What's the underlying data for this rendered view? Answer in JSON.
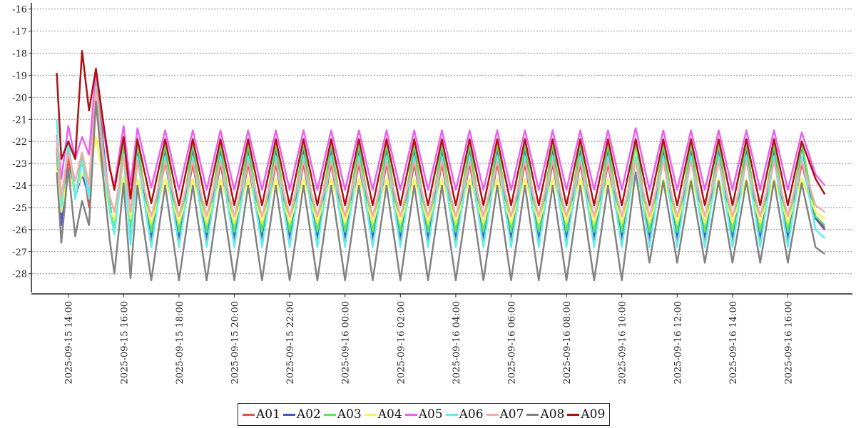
{
  "chart_data": {
    "type": "line",
    "title": "",
    "xlabel": "",
    "ylabel": "",
    "ylim": [
      -28.85,
      -15.85
    ],
    "y_ticks": [
      "-16",
      "-17",
      "-18",
      "-19",
      "-20",
      "-21",
      "-22",
      "-23",
      "-24",
      "-25",
      "-26",
      "-27",
      "-28"
    ],
    "x_ticks": [
      "2025-09-15 14:00",
      "2025-09-15 16:00",
      "2025-09-15 18:00",
      "2025-09-15 20:00",
      "2025-09-15 22:00",
      "2025-09-16 00:00",
      "2025-09-16 02:00",
      "2025-09-16 04:00",
      "2025-09-16 06:00",
      "2025-09-16 08:00",
      "2025-09-16 10:00",
      "2025-09-16 12:00",
      "2025-09-16 14:00",
      "2025-09-16 16:00"
    ],
    "x_range": [
      "2025-09-15 12:40",
      "2025-09-16 18:20"
    ],
    "grid": "horizontal dotted",
    "legend_position": "bottom-center",
    "x": [
      "2025-09-15 13:35",
      "2025-09-15 13:45",
      "2025-09-15 14:00",
      "2025-09-15 14:15",
      "2025-09-15 14:30",
      "2025-09-15 14:45",
      "2025-09-15 15:00",
      "2025-09-15 15:15",
      "2025-09-15 15:30",
      "2025-09-15 15:40",
      "2025-09-15 16:00",
      "2025-09-15 16:15",
      "2025-09-15 16:30",
      "2025-09-15 17:00",
      "2025-09-15 17:30",
      "2025-09-15 18:00",
      "2025-09-15 18:30",
      "2025-09-15 19:00",
      "2025-09-15 19:30",
      "2025-09-15 20:00",
      "2025-09-15 20:30",
      "2025-09-15 21:00",
      "2025-09-15 21:30",
      "2025-09-15 22:00",
      "2025-09-15 22:30",
      "2025-09-15 23:00",
      "2025-09-15 23:30",
      "2025-09-16 00:00",
      "2025-09-16 00:30",
      "2025-09-16 01:00",
      "2025-09-16 01:30",
      "2025-09-16 02:00",
      "2025-09-16 02:30",
      "2025-09-16 03:00",
      "2025-09-16 03:30",
      "2025-09-16 04:00",
      "2025-09-16 04:30",
      "2025-09-16 05:00",
      "2025-09-16 05:30",
      "2025-09-16 06:00",
      "2025-09-16 06:30",
      "2025-09-16 07:00",
      "2025-09-16 07:30",
      "2025-09-16 08:00",
      "2025-09-16 08:30",
      "2025-09-16 09:00",
      "2025-09-16 09:30",
      "2025-09-16 10:00",
      "2025-09-16 10:30",
      "2025-09-16 11:00",
      "2025-09-16 11:30",
      "2025-09-16 12:00",
      "2025-09-16 12:30",
      "2025-09-16 13:00",
      "2025-09-16 13:30",
      "2025-09-16 14:00",
      "2025-09-16 14:30",
      "2025-09-16 15:00",
      "2025-09-16 15:30",
      "2025-09-16 16:00",
      "2025-09-16 16:30",
      "2025-09-16 17:00",
      "2025-09-16 17:20"
    ],
    "series": [
      {
        "name": "A01",
        "color": "#e8504a",
        "values": [
          -22.3,
          -25.5,
          -22.8,
          -24.5,
          -22.8,
          -25.0,
          -19.4,
          -22.8,
          -25.0,
          -26.1,
          -22.6,
          -26.3,
          -22.8,
          -26.5,
          -22.9,
          -26.6,
          -23.0,
          -26.6,
          -23.0,
          -26.6,
          -23.0,
          -26.6,
          -23.0,
          -26.6,
          -23.0,
          -26.6,
          -23.0,
          -26.6,
          -23.0,
          -26.6,
          -23.0,
          -26.6,
          -23.0,
          -26.6,
          -23.0,
          -26.6,
          -23.0,
          -26.6,
          -23.0,
          -26.6,
          -23.0,
          -26.6,
          -23.0,
          -26.6,
          -23.0,
          -26.6,
          -23.0,
          -26.6,
          -22.8,
          -26.5,
          -22.8,
          -26.5,
          -22.8,
          -26.5,
          -22.8,
          -26.5,
          -22.8,
          -26.5,
          -22.8,
          -26.5,
          -23.0,
          -25.5,
          -25.9
        ]
      },
      {
        "name": "A02",
        "color": "#4a55d8",
        "values": [
          -22.5,
          -25.8,
          -22.0,
          -24.5,
          -23.5,
          -24.5,
          -18.9,
          -22.0,
          -24.8,
          -26.2,
          -22.2,
          -26.2,
          -22.3,
          -26.3,
          -22.3,
          -26.3,
          -22.3,
          -26.3,
          -22.3,
          -26.3,
          -22.3,
          -26.3,
          -22.3,
          -26.3,
          -22.3,
          -26.3,
          -22.3,
          -26.3,
          -22.3,
          -26.3,
          -22.3,
          -26.3,
          -22.3,
          -26.3,
          -22.3,
          -26.3,
          -22.3,
          -26.3,
          -22.3,
          -26.3,
          -22.3,
          -26.3,
          -22.3,
          -26.3,
          -22.3,
          -26.3,
          -22.3,
          -26.3,
          -21.9,
          -26.3,
          -22.3,
          -26.3,
          -22.3,
          -26.3,
          -22.3,
          -26.3,
          -22.3,
          -26.3,
          -22.3,
          -26.3,
          -22.2,
          -25.5,
          -26.0
        ]
      },
      {
        "name": "A03",
        "color": "#5ae85a",
        "values": [
          -22.4,
          -25.2,
          -22.1,
          -24.6,
          -22.6,
          -24.6,
          -19.2,
          -22.3,
          -24.9,
          -26.0,
          -22.0,
          -26.0,
          -22.1,
          -26.1,
          -22.1,
          -26.1,
          -22.1,
          -26.1,
          -22.1,
          -26.1,
          -22.1,
          -26.1,
          -22.1,
          -26.1,
          -22.1,
          -26.1,
          -22.1,
          -26.1,
          -22.1,
          -26.1,
          -22.1,
          -26.1,
          -22.1,
          -26.1,
          -22.1,
          -26.1,
          -22.1,
          -26.1,
          -22.1,
          -26.1,
          -22.1,
          -26.1,
          -22.1,
          -26.1,
          -22.1,
          -26.1,
          -22.1,
          -26.1,
          -22.1,
          -26.1,
          -22.1,
          -26.1,
          -22.1,
          -26.1,
          -22.1,
          -26.1,
          -22.1,
          -26.1,
          -22.1,
          -26.1,
          -22.1,
          -25.4,
          -25.8
        ]
      },
      {
        "name": "A04",
        "color": "#f4f452",
        "values": [
          -23.3,
          -25.2,
          -23.4,
          -24.3,
          -23.5,
          -23.8,
          -21.8,
          -23.5,
          -25.2,
          -25.5,
          -23.6,
          -25.5,
          -23.7,
          -25.7,
          -23.7,
          -25.7,
          -23.7,
          -25.7,
          -23.7,
          -25.7,
          -23.7,
          -25.7,
          -23.7,
          -25.7,
          -23.7,
          -25.7,
          -23.7,
          -25.7,
          -23.7,
          -25.7,
          -23.7,
          -25.7,
          -23.7,
          -25.7,
          -23.7,
          -25.7,
          -23.7,
          -25.7,
          -23.7,
          -25.7,
          -23.7,
          -25.7,
          -23.7,
          -25.7,
          -23.7,
          -25.7,
          -23.7,
          -25.7,
          -23.6,
          -25.7,
          -23.7,
          -25.7,
          -23.7,
          -25.7,
          -23.7,
          -25.7,
          -23.7,
          -25.7,
          -23.7,
          -25.7,
          -23.7,
          -25.2,
          -25.5
        ]
      },
      {
        "name": "A05",
        "color": "#ee5ef0",
        "values": [
          -21.7,
          -23.7,
          -21.3,
          -22.8,
          -21.8,
          -22.6,
          -18.8,
          -21.3,
          -23.3,
          -24.0,
          -21.3,
          -24.0,
          -21.4,
          -24.1,
          -21.5,
          -24.2,
          -21.5,
          -24.2,
          -21.5,
          -24.2,
          -21.5,
          -24.2,
          -21.5,
          -24.2,
          -21.5,
          -24.2,
          -21.5,
          -24.2,
          -21.5,
          -24.2,
          -21.5,
          -24.2,
          -21.5,
          -24.2,
          -21.5,
          -24.2,
          -21.5,
          -24.2,
          -21.5,
          -24.2,
          -21.5,
          -24.2,
          -21.5,
          -24.2,
          -21.5,
          -24.2,
          -21.5,
          -24.2,
          -21.4,
          -24.2,
          -21.5,
          -24.2,
          -21.5,
          -24.2,
          -21.5,
          -24.2,
          -21.5,
          -24.2,
          -21.5,
          -24.2,
          -21.6,
          -23.5,
          -24.0
        ]
      },
      {
        "name": "A06",
        "color": "#5ef0ee",
        "values": [
          -21.0,
          -25.0,
          -22.0,
          -24.6,
          -22.9,
          -24.6,
          -19.5,
          -22.6,
          -25.2,
          -26.2,
          -22.6,
          -26.7,
          -22.7,
          -26.8,
          -22.7,
          -26.8,
          -22.7,
          -26.8,
          -22.7,
          -26.8,
          -22.7,
          -26.8,
          -22.7,
          -26.8,
          -22.7,
          -26.8,
          -22.7,
          -26.8,
          -22.7,
          -26.8,
          -22.7,
          -26.8,
          -22.7,
          -26.8,
          -22.7,
          -26.8,
          -22.7,
          -26.8,
          -22.7,
          -26.8,
          -22.7,
          -26.8,
          -22.7,
          -26.8,
          -22.7,
          -26.8,
          -22.7,
          -26.8,
          -22.7,
          -26.8,
          -22.7,
          -26.8,
          -22.7,
          -26.8,
          -22.7,
          -26.8,
          -22.7,
          -26.8,
          -22.7,
          -26.8,
          -22.7,
          -26.0,
          -26.4
        ]
      },
      {
        "name": "A07",
        "color": "#f4aaa8",
        "values": [
          -22.0,
          -24.5,
          -22.5,
          -23.8,
          -22.5,
          -24.0,
          -19.6,
          -22.5,
          -24.5,
          -25.2,
          -22.7,
          -25.2,
          -22.9,
          -25.4,
          -22.9,
          -25.4,
          -22.9,
          -25.4,
          -22.9,
          -25.4,
          -22.9,
          -25.4,
          -22.9,
          -25.4,
          -22.9,
          -25.4,
          -22.9,
          -25.4,
          -22.9,
          -25.4,
          -22.9,
          -25.4,
          -22.9,
          -25.4,
          -22.9,
          -25.4,
          -22.9,
          -25.4,
          -22.9,
          -25.4,
          -22.9,
          -25.4,
          -22.9,
          -25.4,
          -22.9,
          -25.4,
          -22.9,
          -25.4,
          -22.9,
          -25.4,
          -22.9,
          -25.4,
          -22.9,
          -25.4,
          -22.9,
          -25.4,
          -22.9,
          -25.4,
          -22.9,
          -25.4,
          -22.9,
          -24.9,
          -25.2
        ]
      },
      {
        "name": "A08",
        "color": "#828282",
        "values": [
          -23.4,
          -26.6,
          -23.2,
          -26.3,
          -24.7,
          -25.8,
          -20.2,
          -23.5,
          -26.5,
          -28.0,
          -23.9,
          -28.2,
          -24.0,
          -28.3,
          -24.0,
          -28.3,
          -24.0,
          -28.3,
          -24.0,
          -28.3,
          -24.0,
          -28.3,
          -24.0,
          -28.3,
          -24.0,
          -28.3,
          -24.0,
          -28.3,
          -24.0,
          -28.3,
          -24.0,
          -28.3,
          -24.0,
          -28.3,
          -24.0,
          -28.3,
          -24.0,
          -28.3,
          -24.0,
          -28.3,
          -24.0,
          -28.3,
          -24.0,
          -28.3,
          -24.0,
          -28.3,
          -24.0,
          -28.3,
          -23.4,
          -27.5,
          -23.8,
          -27.5,
          -23.8,
          -27.5,
          -23.8,
          -27.5,
          -23.8,
          -27.5,
          -23.8,
          -27.5,
          -23.9,
          -26.8,
          -27.1
        ]
      },
      {
        "name": "A09",
        "color": "#b21010",
        "values": [
          -18.9,
          -22.8,
          -22.0,
          -22.8,
          -17.9,
          -20.6,
          -18.7,
          -21.0,
          -23.2,
          -24.2,
          -21.8,
          -24.6,
          -21.9,
          -24.8,
          -21.9,
          -24.9,
          -21.9,
          -24.9,
          -21.9,
          -24.9,
          -21.9,
          -24.9,
          -21.9,
          -24.9,
          -21.9,
          -24.9,
          -21.9,
          -24.9,
          -21.9,
          -24.9,
          -21.9,
          -24.9,
          -21.9,
          -24.9,
          -21.9,
          -24.9,
          -21.9,
          -24.9,
          -21.9,
          -24.9,
          -21.9,
          -24.9,
          -21.9,
          -24.9,
          -21.9,
          -24.9,
          -21.9,
          -24.9,
          -21.9,
          -24.9,
          -21.9,
          -24.9,
          -21.9,
          -24.9,
          -21.9,
          -24.9,
          -21.9,
          -24.9,
          -21.9,
          -24.9,
          -22.0,
          -23.7,
          -24.4
        ]
      }
    ]
  }
}
